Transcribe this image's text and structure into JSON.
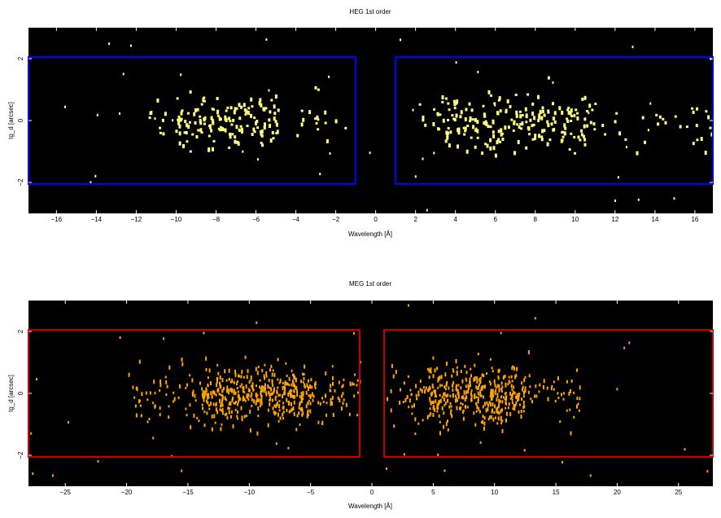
{
  "chart_data": [
    {
      "type": "heatmap",
      "title": "HEG 1st order",
      "xlabel": "Wavelength [Å]",
      "ylabel": "tg_d [arcsec]",
      "xlim": [
        -17.4,
        16.9
      ],
      "ylim": [
        -3.0,
        3.0
      ],
      "xticks": [
        -16,
        -14,
        -12,
        -10,
        -8,
        -6,
        -4,
        -2,
        0,
        2,
        4,
        6,
        8,
        10,
        12,
        14,
        16
      ],
      "xtick_labels": [
        "−16",
        "−14",
        "−12",
        "−10",
        "−8",
        "−6",
        "−4",
        "−2",
        "0",
        "2",
        "4",
        "6",
        "8",
        "10",
        "12",
        "14",
        "16"
      ],
      "yticks": [
        -2,
        0,
        2
      ],
      "ytick_labels": [
        "−2",
        "0",
        "2"
      ],
      "background": "#000000",
      "event_color": "#ffff80",
      "region_color": "#0000ff",
      "regions": [
        {
          "x0": -17.4,
          "x1": -1.0,
          "y0": -2.05,
          "y1": 2.05
        },
        {
          "x0": 1.0,
          "x1": 16.9,
          "y0": -2.05,
          "y1": 2.05
        }
      ],
      "event_density": {
        "minus_order": {
          "x_range": [
            -11.5,
            -1.5
          ],
          "core": [
            -10.0,
            -5.0
          ],
          "count": 175
        },
        "plus_order": {
          "x_range": [
            1.0,
            16.9
          ],
          "core": [
            3.0,
            11.0
          ],
          "count": 245
        },
        "background_count": 40
      }
    },
    {
      "type": "heatmap",
      "title": "MEG 1st order",
      "xlabel": "Wavelength [Å]",
      "ylabel": "tg_d [arcsec]",
      "xlim": [
        -28.0,
        27.8
      ],
      "ylim": [
        -3.0,
        3.0
      ],
      "xticks": [
        -25,
        -20,
        -15,
        -10,
        -5,
        0,
        5,
        10,
        15,
        20,
        25
      ],
      "xtick_labels": [
        "−25",
        "−20",
        "−15",
        "−10",
        "−5",
        "0",
        "5",
        "10",
        "15",
        "20",
        "25"
      ],
      "yticks": [
        -2,
        0,
        2
      ],
      "ytick_labels": [
        "−2",
        "0",
        "2"
      ],
      "background": "#000000",
      "event_color": "#ffa500",
      "region_color": "#cc0000",
      "regions": [
        {
          "x0": -28.0,
          "x1": -1.0,
          "y0": -2.05,
          "y1": 2.05
        },
        {
          "x0": 1.0,
          "x1": 27.8,
          "y0": -2.05,
          "y1": 2.05
        }
      ],
      "event_density": {
        "minus_order": {
          "x_range": [
            -20.0,
            -1.0
          ],
          "core": [
            -14.0,
            -5.0
          ],
          "count": 520
        },
        "plus_order": {
          "x_range": [
            1.0,
            17.0
          ],
          "core": [
            4.5,
            12.5
          ],
          "count": 440
        },
        "background_count": 50
      }
    }
  ]
}
